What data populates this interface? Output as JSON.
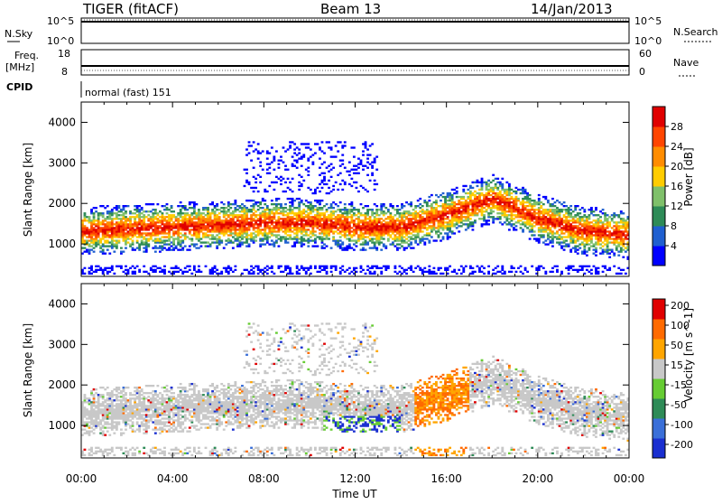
{
  "header": {
    "station": "TIGER (fitACF)",
    "beam": "Beam 13",
    "date": "14/Jan/2013"
  },
  "status_panels": {
    "nsky_label": "N.Sky",
    "nsearch_label": "N.Search",
    "nsky_ticks": [
      "10^5",
      "10^0"
    ],
    "nsearch_ticks": [
      "10^5",
      "10^0"
    ],
    "freq_label_line1": "Freq.",
    "freq_label_line2": "[MHz]",
    "freq_ticks": [
      "18",
      "8"
    ],
    "nave_label": "Nave",
    "nave_ticks": [
      "60",
      "0"
    ],
    "cpid_label": "CPID",
    "cpid_text": "normal (fast) 151"
  },
  "chart_data": [
    {
      "type": "heatmap",
      "parameter": "Power",
      "ylabel": "Slant Range [km]",
      "ylim": [
        200,
        4500
      ],
      "xlim_hours": [
        0,
        24
      ],
      "yticks": [
        "1000",
        "2000",
        "3000",
        "4000"
      ],
      "colorbar": {
        "label": "Power [dB]",
        "ticks": [
          "4",
          "8",
          "12",
          "16",
          "20",
          "24",
          "28"
        ],
        "colors": [
          "#0000ff",
          "#1f5fd0",
          "#2e8b57",
          "#7fc06a",
          "#ffcc00",
          "#ff8c00",
          "#ff4500",
          "#e00000"
        ]
      },
      "main_echo_band": [
        {
          "hour": 0,
          "range_km": 1300
        },
        {
          "hour": 2,
          "range_km": 1350
        },
        {
          "hour": 4,
          "range_km": 1400
        },
        {
          "hour": 6,
          "range_km": 1450
        },
        {
          "hour": 8,
          "range_km": 1500
        },
        {
          "hour": 10,
          "range_km": 1500
        },
        {
          "hour": 12,
          "range_km": 1400
        },
        {
          "hour": 14,
          "range_km": 1400
        },
        {
          "hour": 16,
          "range_km": 1700
        },
        {
          "hour": 18,
          "range_km": 2100
        },
        {
          "hour": 20,
          "range_km": 1600
        },
        {
          "hour": 22,
          "range_km": 1300
        },
        {
          "hour": 24,
          "range_km": 1200
        }
      ]
    },
    {
      "type": "heatmap",
      "parameter": "Velocity",
      "ylabel": "Slant Range [km]",
      "xlabel": "Time UT",
      "ylim": [
        200,
        4500
      ],
      "xlim_hours": [
        0,
        24
      ],
      "xticks": [
        "00:00",
        "04:00",
        "08:00",
        "12:00",
        "16:00",
        "20:00",
        "00:00"
      ],
      "yticks": [
        "1000",
        "2000",
        "3000",
        "4000"
      ],
      "colorbar": {
        "label": "Velocity [m s^-1]",
        "ticks": [
          "200",
          "100",
          "50",
          "15",
          "-15",
          "-50",
          "-100",
          "-200"
        ],
        "colors": [
          "#1a2fd0",
          "#3a6fd8",
          "#2e8b57",
          "#66cc33",
          "#c8c8c8",
          "#ffa500",
          "#ff6a00",
          "#e00000"
        ]
      }
    }
  ]
}
